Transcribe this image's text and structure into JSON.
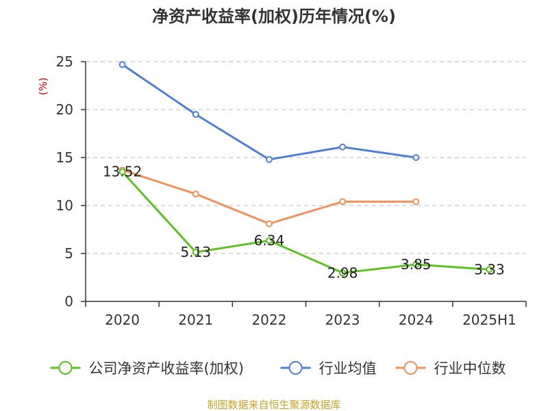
{
  "chart_data": {
    "type": "line",
    "title": "净资产收益率(加权)历年情况(%)",
    "ylabel": "(%)",
    "categories": [
      "2020",
      "2021",
      "2022",
      "2023",
      "2024",
      "2025H1"
    ],
    "ylim": [
      0,
      25
    ],
    "yticks": [
      0,
      5,
      10,
      15,
      20,
      25
    ],
    "grid": true,
    "legend_position": "bottom",
    "series": [
      {
        "name": "公司净资产收益率(加权)",
        "color": "#5bc222",
        "values": [
          13.52,
          5.13,
          6.34,
          2.98,
          3.85,
          3.33
        ],
        "labels": [
          "13.52",
          "5.13",
          "6.34",
          "2.98",
          "3.85",
          "3.33"
        ]
      },
      {
        "name": "行业均值",
        "color": "#4d7fd9",
        "values": [
          24.7,
          19.5,
          14.8,
          16.1,
          15.0,
          null
        ]
      },
      {
        "name": "行业中位数",
        "color": "#f39059",
        "values": [
          13.7,
          11.2,
          8.1,
          10.4,
          10.4,
          null
        ]
      }
    ]
  },
  "footer": {
    "source": "制图数据来自恒生聚源数据库"
  }
}
